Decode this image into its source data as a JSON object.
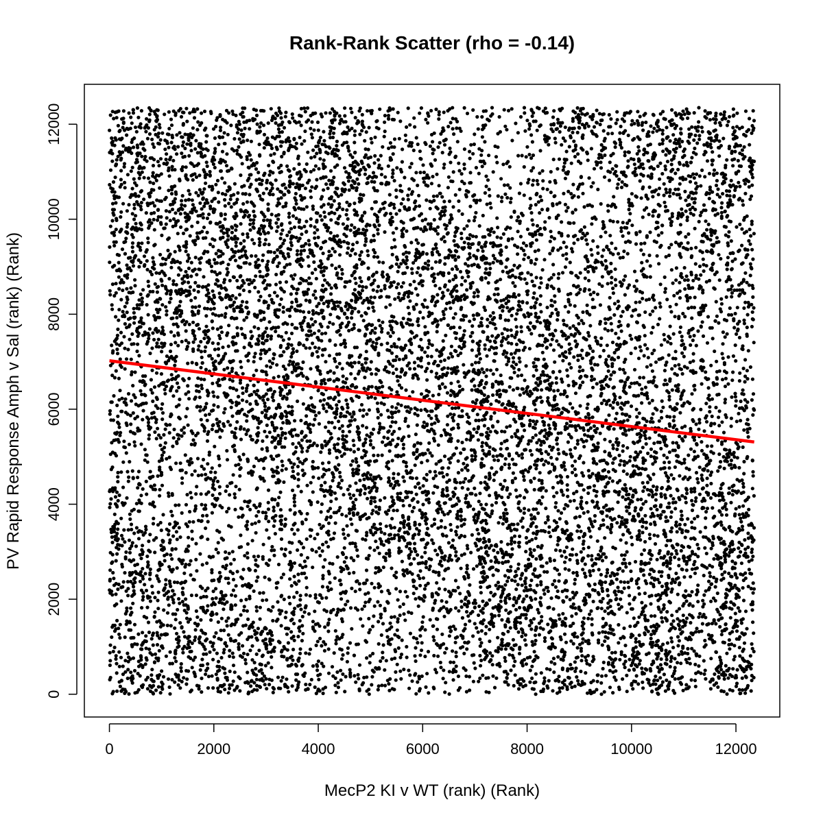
{
  "chart_data": {
    "type": "scatter",
    "title": "Rank-Rank Scatter (rho = -0.14)",
    "xlabel": "MecP2  KI v WT (rank) (Rank)",
    "ylabel": "PV Rapid Response Amph v Sal (rank) (Rank)",
    "xlim": [
      -480,
      12840
    ],
    "ylim": [
      -480,
      12840
    ],
    "x_ticks": [
      0,
      2000,
      4000,
      6000,
      8000,
      10000,
      12000
    ],
    "y_ticks": [
      0,
      2000,
      4000,
      6000,
      8000,
      10000,
      12000
    ],
    "n_points": 12350,
    "rank_max": 12350,
    "rho": -0.14,
    "series": [
      {
        "type": "scatter",
        "color": "#000000",
        "marker": "filled-circle"
      },
      {
        "type": "line",
        "color": "#ff0000",
        "x": [
          0,
          12350
        ],
        "y": [
          7020,
          5310
        ]
      }
    ],
    "grid": false,
    "legend": "none"
  }
}
